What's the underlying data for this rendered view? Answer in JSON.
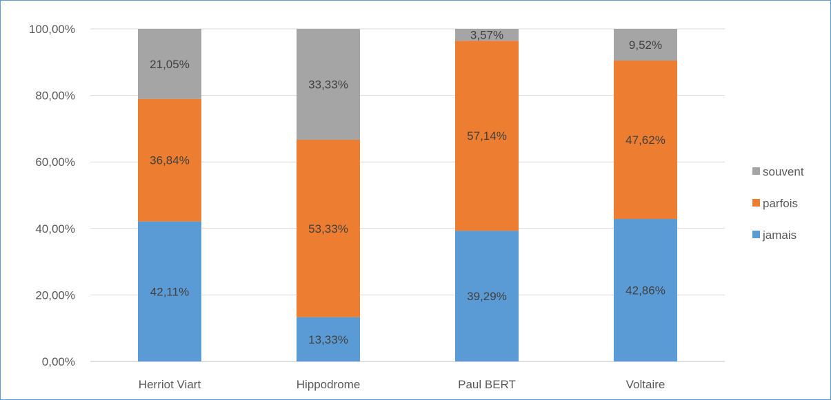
{
  "chart_data": {
    "type": "bar",
    "stacked": true,
    "percent": true,
    "title": "",
    "xlabel": "",
    "ylabel": "",
    "ylim": [
      0,
      100
    ],
    "yticks": [
      0,
      20,
      40,
      60,
      80,
      100
    ],
    "ytick_labels": [
      "0,00%",
      "20,00%",
      "40,00%",
      "60,00%",
      "80,00%",
      "100,00%"
    ],
    "grid": true,
    "legend_position": "right",
    "categories": [
      "Herriot Viart",
      "Hippodrome",
      "Paul BERT",
      "Voltaire"
    ],
    "series": [
      {
        "name": "jamais",
        "color": "#5b9bd5",
        "values": [
          42.11,
          13.33,
          39.29,
          42.86
        ],
        "labels": [
          "42,11%",
          "13,33%",
          "39,29%",
          "42,86%"
        ]
      },
      {
        "name": "parfois",
        "color": "#ed7d31",
        "values": [
          36.84,
          53.33,
          57.14,
          47.62
        ],
        "labels": [
          "36,84%",
          "53,33%",
          "57,14%",
          "47,62%"
        ]
      },
      {
        "name": "souvent",
        "color": "#a5a5a5",
        "values": [
          21.05,
          33.33,
          3.57,
          9.52
        ],
        "labels": [
          "21,05%",
          "33,33%",
          "3,57%",
          "9,52%"
        ]
      }
    ],
    "legend_order": [
      "souvent",
      "parfois",
      "jamais"
    ]
  }
}
